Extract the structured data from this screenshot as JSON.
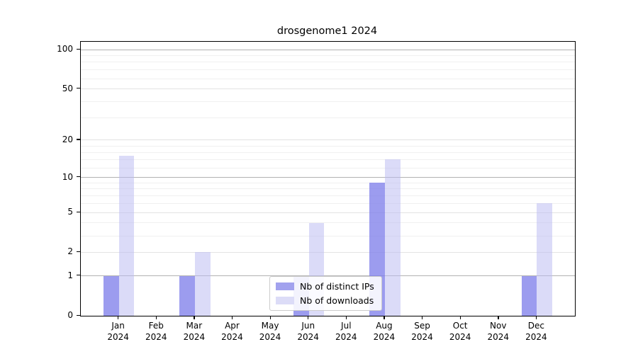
{
  "title": "drosgenome1 2024",
  "chart_data": {
    "type": "bar",
    "title": "drosgenome1 2024",
    "categories": [
      "Jan 2024",
      "Feb 2024",
      "Mar 2024",
      "Apr 2024",
      "May 2024",
      "Jun 2024",
      "Jul 2024",
      "Aug 2024",
      "Sep 2024",
      "Oct 2024",
      "Nov 2024",
      "Dec 2024"
    ],
    "series": [
      {
        "name": "Nb of distinct IPs",
        "values": [
          1,
          0,
          1,
          0,
          0,
          1,
          0,
          9,
          0,
          0,
          0,
          1
        ],
        "bar_fill": "rgba(128,128,234,0.78)",
        "legend_fill": "#a2a2ee"
      },
      {
        "name": "Nb of downloads",
        "values": [
          15,
          0,
          2,
          0,
          0,
          4,
          0,
          14,
          0,
          0,
          0,
          6
        ],
        "bar_fill": "rgba(186,186,242,0.52)",
        "legend_fill": "#dcdcf7"
      }
    ],
    "xlabel": "",
    "ylabel": "",
    "y_scale": "log(value+1)",
    "y_ticks": [
      0,
      1,
      2,
      5,
      10,
      20,
      50,
      100
    ],
    "y_minor_ticks": [
      3,
      4,
      6,
      7,
      8,
      9,
      12,
      14,
      16,
      18,
      30,
      40,
      60,
      70,
      80,
      90
    ],
    "ylim": [
      0,
      115
    ],
    "grid": "on",
    "legend_position": "lower center"
  },
  "colors": {
    "background": "#ffffff",
    "axis": "#000000",
    "text": "#000000",
    "decade_gridline": "#b2b2b2",
    "major_gridline": "#e3e3e3",
    "minor_gridline": "#f0f0f0",
    "legend_border": "#cccccc"
  }
}
